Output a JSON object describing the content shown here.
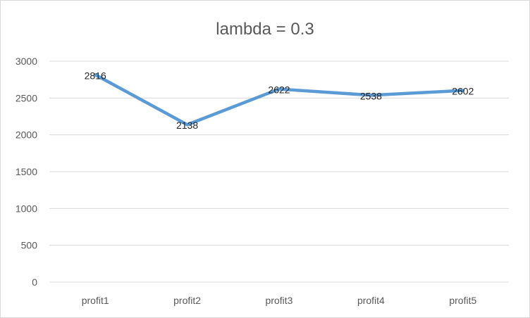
{
  "chart_data": {
    "type": "line",
    "title": "lambda = 0.3",
    "xlabel": "",
    "ylabel": "",
    "categories": [
      "profit1",
      "profit2",
      "profit3",
      "profit4",
      "profit5"
    ],
    "series": [
      {
        "values": [
          2816,
          2138,
          2622,
          2538,
          2602
        ],
        "color": "#5b9bd5"
      }
    ],
    "data_labels": [
      "2816",
      "2138",
      "2622",
      "2538",
      "2602"
    ],
    "ylim": [
      0,
      3000
    ],
    "yticks": [
      0,
      500,
      1000,
      1500,
      2000,
      2500,
      3000
    ],
    "grid": true,
    "legend": "none"
  }
}
